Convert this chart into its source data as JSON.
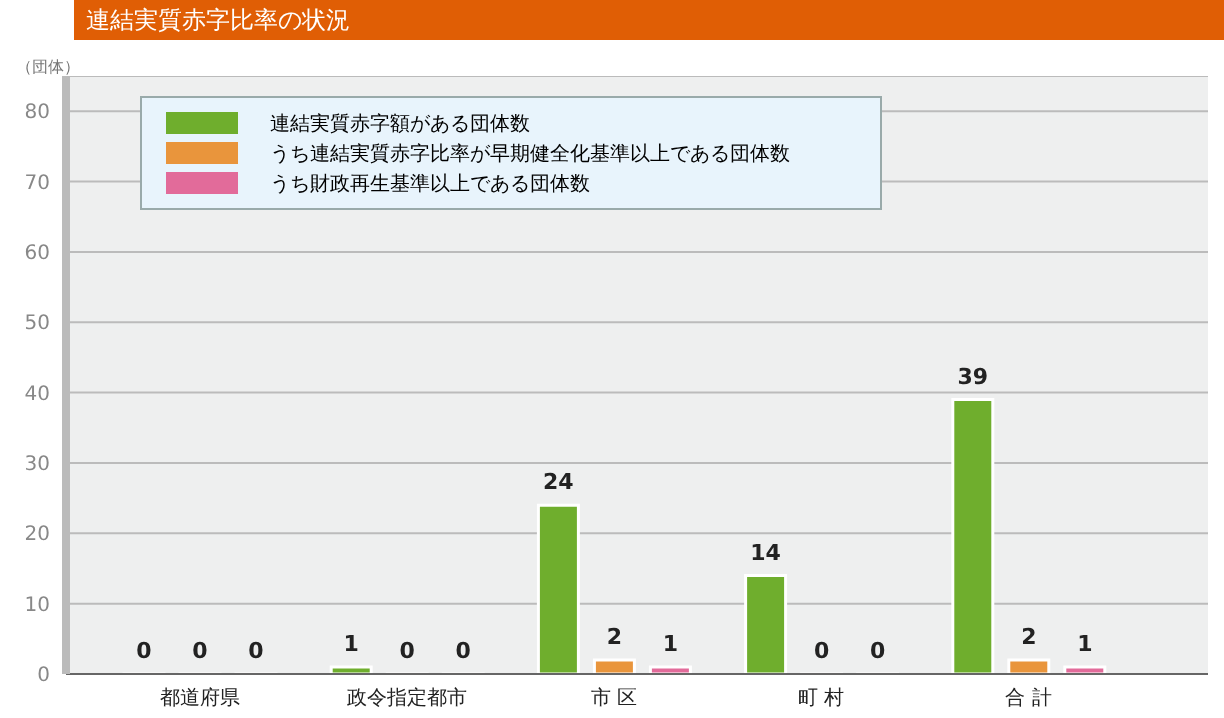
{
  "chart_data": {
    "type": "bar",
    "title": "連結実質赤字比率の状況",
    "annotations": [
      "（団体）"
    ],
    "categories": [
      "都道府県",
      "政令指定都市",
      "市 区",
      "町 村",
      "合 計"
    ],
    "series": [
      {
        "name": "連結実質赤字額がある団体数",
        "color": "#6fae2d",
        "values": [
          0,
          1,
          24,
          14,
          39
        ]
      },
      {
        "name": "うち連結実質赤字比率が早期健全化基準以上である団体数",
        "color": "#e9953c",
        "values": [
          0,
          0,
          2,
          0,
          2
        ]
      },
      {
        "name": "うち財政再生基準以上である団体数",
        "color": "#e26b9a",
        "values": [
          0,
          0,
          1,
          0,
          1
        ]
      }
    ],
    "ylim": [
      0,
      85
    ],
    "yticks": [
      0,
      10,
      20,
      30,
      40,
      50,
      60,
      70,
      80
    ],
    "grid": "y",
    "legend": "top left",
    "data_labels": true
  }
}
